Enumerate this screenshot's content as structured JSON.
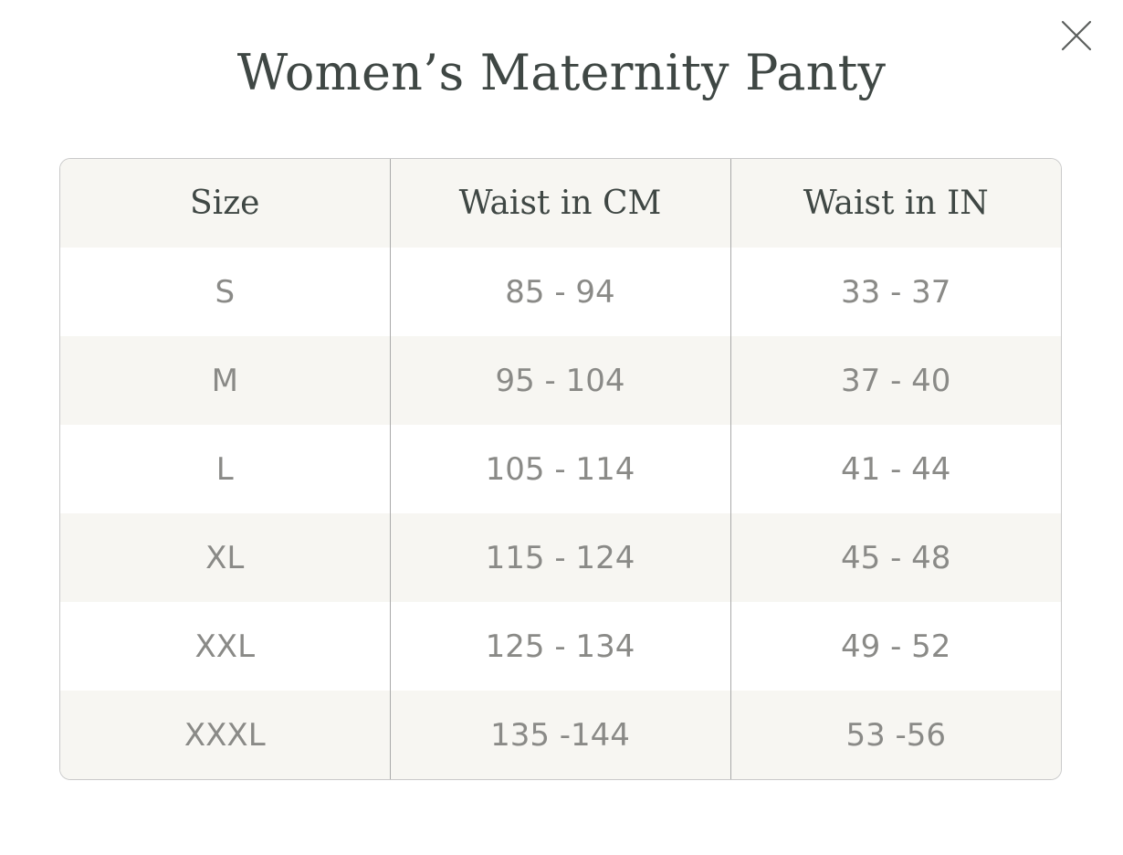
{
  "modal": {
    "title": "Women’s Maternity Panty",
    "close_icon": "close-icon"
  },
  "table": {
    "headers": [
      "Size",
      "Waist in CM",
      "Waist in IN"
    ],
    "rows": [
      [
        "S",
        "85 - 94",
        "33 - 37"
      ],
      [
        "M",
        "95 - 104",
        "37 - 40"
      ],
      [
        "L",
        "105 - 114",
        "41 - 44"
      ],
      [
        "XL",
        "115 - 124",
        "45 - 48"
      ],
      [
        "XXL",
        "125 - 134",
        "49 - 52"
      ],
      [
        "XXXL",
        "135 -144",
        "53 -56"
      ]
    ]
  },
  "colors": {
    "title_text": "#3f4744",
    "cell_text": "#8a8a87",
    "stripe": "#f7f6f2",
    "border": "#c9c9c9"
  }
}
